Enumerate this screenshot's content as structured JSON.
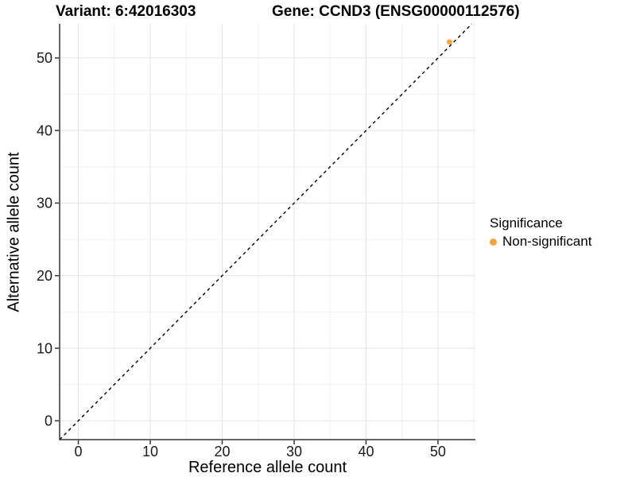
{
  "header": {
    "title_left": "Variant: 6:42016303",
    "title_right": "Gene: CCND3 (ENSG00000112576)"
  },
  "chart_data": {
    "type": "scatter",
    "xlabel": "Reference allele count",
    "ylabel": "Alternative allele count",
    "xticks": [
      0,
      10,
      20,
      30,
      40,
      50
    ],
    "yticks": [
      0,
      10,
      20,
      30,
      40,
      50
    ],
    "xlim": [
      -2.6,
      55.2
    ],
    "ylim": [
      -2.6,
      54.7
    ],
    "grid": "major+minor",
    "minor_grid_step": 5,
    "identity_line": {
      "style": "dashed",
      "color": "#000000",
      "equation": "y = x"
    },
    "series": [
      {
        "name": "Non-significant",
        "color": "#FAA43A",
        "points": [
          {
            "x": 51.6,
            "y": 52.2
          }
        ]
      }
    ],
    "legend": {
      "title": "Significance",
      "position": "right",
      "items": [
        {
          "label": "Non-significant",
          "color": "#FAA43A"
        }
      ]
    },
    "colors": {
      "grid_major": "#E4E4E4",
      "grid_minor": "#F1F1F1",
      "axis_line": "#333333",
      "tick_label": "#1a1a1a"
    }
  }
}
